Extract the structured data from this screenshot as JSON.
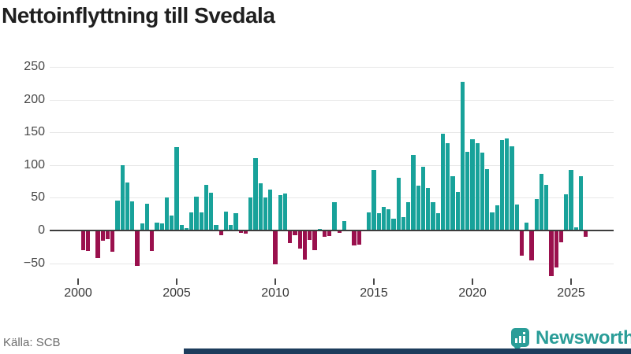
{
  "title": "Nettoinflyttning till Svedala",
  "source": "Källa: SCB",
  "branding": {
    "wordmark": "Newsworthy",
    "logo_icon": "newsworthy-pin-bar-chart-icon",
    "accent_color": "#2a9d98",
    "bottom_strip_color": "#1d3c5c"
  },
  "chart_data": {
    "type": "bar",
    "title": "Nettoinflyttning till Svedala",
    "xlabel": "",
    "ylabel": "",
    "frequency": "quarterly",
    "start": "2000 Q1",
    "end": "2025 Q4",
    "x_tick_labels": [
      "2000",
      "2005",
      "2010",
      "2015",
      "2020",
      "2025"
    ],
    "y_ticks": [
      250,
      200,
      150,
      100,
      50,
      0,
      -50
    ],
    "y_tick_labels": [
      "250",
      "200",
      "150",
      "100",
      "50",
      "0",
      "−50"
    ],
    "ylim": [
      -77,
      256
    ],
    "grid": "horizontal",
    "legend": "none",
    "positive_color": "#18a29a",
    "negative_color": "#9a104d",
    "values_by_year": {
      "2000": [
        0,
        -29,
        -30,
        0
      ],
      "2001": [
        -41,
        -14,
        -12,
        -31
      ],
      "2002": [
        46,
        100,
        73,
        44
      ],
      "2003": [
        -53,
        11,
        41,
        -30
      ],
      "2004": [
        12,
        11,
        51,
        23
      ],
      "2005": [
        128,
        9,
        4,
        28
      ],
      "2006": [
        52,
        28,
        70,
        58
      ],
      "2007": [
        8,
        -6,
        29,
        9
      ],
      "2008": [
        27,
        -3,
        -4,
        50
      ],
      "2009": [
        110,
        72,
        50,
        63
      ],
      "2010": [
        -51,
        54,
        56,
        -18
      ],
      "2011": [
        -6,
        -26,
        -43,
        -13
      ],
      "2012": [
        -29,
        2,
        -8,
        -7
      ],
      "2013": [
        43,
        -2,
        15,
        0
      ],
      "2014": [
        -22,
        -20,
        0,
        28
      ],
      "2015": [
        93,
        27,
        36,
        33
      ],
      "2016": [
        18,
        80,
        20,
        43
      ],
      "2017": [
        115,
        68,
        97,
        65
      ],
      "2018": [
        43,
        27,
        148,
        133
      ],
      "2019": [
        83,
        59,
        227,
        120
      ],
      "2020": [
        139,
        134,
        119,
        94
      ],
      "2021": [
        28,
        39,
        138,
        141
      ],
      "2022": [
        129,
        40,
        -37,
        12
      ],
      "2023": [
        -45,
        48,
        87,
        70
      ],
      "2024": [
        -68,
        -55,
        -17,
        55
      ],
      "2025": [
        92,
        5,
        83,
        -8
      ]
    }
  }
}
